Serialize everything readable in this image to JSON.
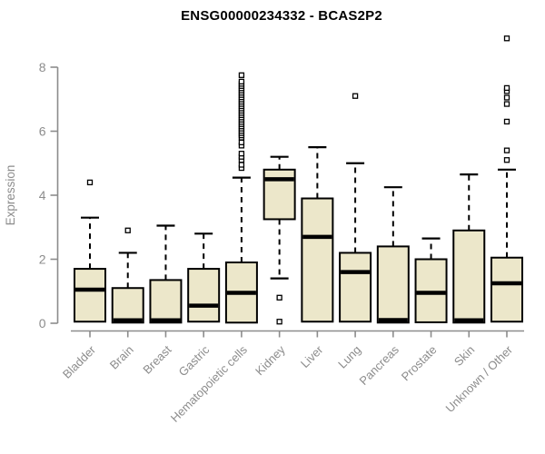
{
  "chart_data": {
    "type": "boxplot",
    "title": "ENSG00000234332 - BCAS2P2",
    "xlabel": "",
    "ylabel": "Expression",
    "ylim": [
      0,
      9.2
    ],
    "yticks": [
      0,
      2,
      4,
      6,
      8
    ],
    "grid": false,
    "legend": "none",
    "categories": [
      "Bladder",
      "Brain",
      "Breast",
      "Gastric",
      "Hematopoietic cells",
      "Kidney",
      "Liver",
      "Lung",
      "Pancreas",
      "Prostate",
      "Skin",
      "Unknown / Other"
    ],
    "series": [
      {
        "name": "Bladder",
        "low": 0.05,
        "q1": 0.05,
        "median": 1.05,
        "q3": 1.7,
        "high": 3.3,
        "outliers": [
          4.4
        ]
      },
      {
        "name": "Brain",
        "low": 0.02,
        "q1": 0.02,
        "median": 0.07,
        "q3": 1.1,
        "high": 2.2,
        "outliers": [
          2.9
        ]
      },
      {
        "name": "Breast",
        "low": 0.02,
        "q1": 0.02,
        "median": 0.07,
        "q3": 1.35,
        "high": 3.05,
        "outliers": []
      },
      {
        "name": "Gastric",
        "low": 0.05,
        "q1": 0.05,
        "median": 0.55,
        "q3": 1.7,
        "high": 2.8,
        "outliers": []
      },
      {
        "name": "Hematopoietic cells",
        "low": 0.02,
        "q1": 0.02,
        "median": 0.95,
        "q3": 1.9,
        "high": 4.55,
        "outliers": [
          4.85,
          4.95,
          5.1,
          5.2,
          5.3,
          5.55,
          5.65,
          5.8,
          5.87,
          5.94,
          6.01,
          6.08,
          6.15,
          6.22,
          6.29,
          6.36,
          6.43,
          6.5,
          6.57,
          6.64,
          6.71,
          6.78,
          6.85,
          6.92,
          6.99,
          7.06,
          7.13,
          7.2,
          7.27,
          7.34,
          7.41,
          7.48,
          7.55,
          7.75
        ]
      },
      {
        "name": "Kidney",
        "low": 1.4,
        "q1": 3.25,
        "median": 4.5,
        "q3": 4.8,
        "high": 5.2,
        "outliers": [
          0.8,
          0.05
        ]
      },
      {
        "name": "Liver",
        "low": 0.05,
        "q1": 0.05,
        "median": 2.7,
        "q3": 3.9,
        "high": 5.5,
        "outliers": []
      },
      {
        "name": "Lung",
        "low": 0.05,
        "q1": 0.05,
        "median": 1.6,
        "q3": 2.2,
        "high": 5.0,
        "outliers": [
          7.1
        ]
      },
      {
        "name": "Pancreas",
        "low": 0.02,
        "q1": 0.02,
        "median": 0.1,
        "q3": 2.4,
        "high": 4.25,
        "outliers": []
      },
      {
        "name": "Prostate",
        "low": 0.03,
        "q1": 0.03,
        "median": 0.95,
        "q3": 2.0,
        "high": 2.65,
        "outliers": []
      },
      {
        "name": "Skin",
        "low": 0.02,
        "q1": 0.02,
        "median": 0.07,
        "q3": 2.9,
        "high": 4.65,
        "outliers": []
      },
      {
        "name": "Unknown / Other",
        "low": 0.05,
        "q1": 0.05,
        "median": 1.25,
        "q3": 2.05,
        "high": 4.8,
        "outliers": [
          5.1,
          5.4,
          6.3,
          6.85,
          7.05,
          7.25,
          7.35,
          8.9
        ]
      }
    ],
    "colors": {
      "box_fill": "#ECE7CA",
      "box_border": "#000000",
      "median": "#000000",
      "whisker": "#000000",
      "outlier_stroke": "#000000",
      "outlier_fill": "#ffffff",
      "axis": "#8c8c8c",
      "tick_label": "#8c8c8c",
      "title": "#000000",
      "background": "#ffffff"
    }
  }
}
